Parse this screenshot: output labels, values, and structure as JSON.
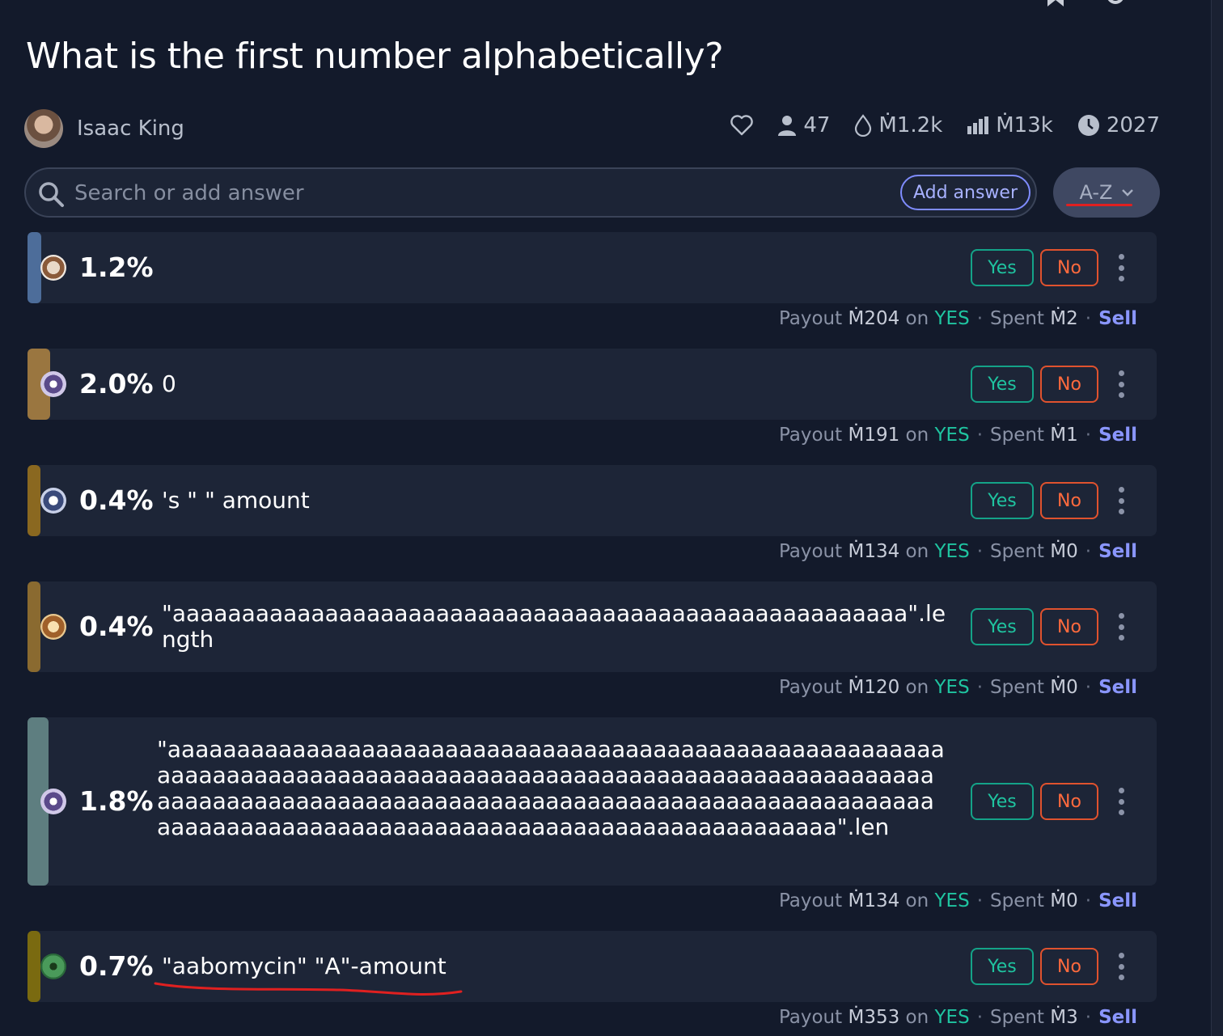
{
  "question": {
    "title": "What is the first number alphabetically?"
  },
  "author": {
    "name": "Isaac King"
  },
  "stats": {
    "traders": "47",
    "liquidity": "Ṁ1.2k",
    "volume": "Ṁ13k",
    "close_year": "2027"
  },
  "search": {
    "placeholder": "Search or add answer",
    "add_label": "Add answer"
  },
  "sort": {
    "label": "A-Z"
  },
  "colors": {
    "yes": "#1fc4a0",
    "no": "#ff6a3d",
    "sell": "#8a96ff"
  },
  "answers": [
    {
      "pct": "1.2%",
      "text": "",
      "yes": "Yes",
      "no": "No",
      "payout": "Ṁ204",
      "on": "on",
      "outcome": "YES",
      "spent": "Ṁ2",
      "payout_label": "Payout",
      "spent_label": "Spent",
      "sell": "Sell"
    },
    {
      "pct": "2.0%",
      "text": "0",
      "yes": "Yes",
      "no": "No",
      "payout": "Ṁ191",
      "on": "on",
      "outcome": "YES",
      "spent": "Ṁ1",
      "payout_label": "Payout",
      "spent_label": "Spent",
      "sell": "Sell"
    },
    {
      "pct": "0.4%",
      "text": "'s \" \" amount",
      "yes": "Yes",
      "no": "No",
      "payout": "Ṁ134",
      "on": "on",
      "outcome": "YES",
      "spent": "Ṁ0",
      "payout_label": "Payout",
      "spent_label": "Spent",
      "sell": "Sell"
    },
    {
      "pct": "0.4%",
      "text": "\"aaaaaaaaaaaaaaaaaaaaaaaaaaaaaaaaaaaaaaaaaaaaaaaaaaaaa\".length",
      "yes": "Yes",
      "no": "No",
      "payout": "Ṁ120",
      "on": "on",
      "outcome": "YES",
      "spent": "Ṁ0",
      "payout_label": "Payout",
      "spent_label": "Spent",
      "sell": "Sell"
    },
    {
      "pct": "1.8%",
      "text": "\"aaaaaaaaaaaaaaaaaaaaaaaaaaaaaaaaaaaaaaaaaaaaaaaaaaaaaaaaaaaaaaaaaaaaaaaaaaaaaaaaaaaaaaaaaaaaaaaaaaaaaaaaaaaaaaaaaaaaaaaaaaaaaaaaaaaaaaaaaaaaaaaaaaaaaaaaaaaaaaaaaaaaaaaaaaaaaaaaaaaaaaaaaaaaaaaaaaaaaaaaaaaaaaaaaaaaaaaaa\".len",
      "yes": "Yes",
      "no": "No",
      "payout": "Ṁ134",
      "on": "on",
      "outcome": "YES",
      "spent": "Ṁ0",
      "payout_label": "Payout",
      "spent_label": "Spent",
      "sell": "Sell"
    },
    {
      "pct": "0.7%",
      "text": "\"aabomycin\" \"A\"-amount",
      "yes": "Yes",
      "no": "No",
      "payout": "Ṁ353",
      "on": "on",
      "outcome": "YES",
      "spent": "Ṁ3",
      "payout_label": "Payout",
      "spent_label": "Spent",
      "sell": "Sell"
    }
  ]
}
